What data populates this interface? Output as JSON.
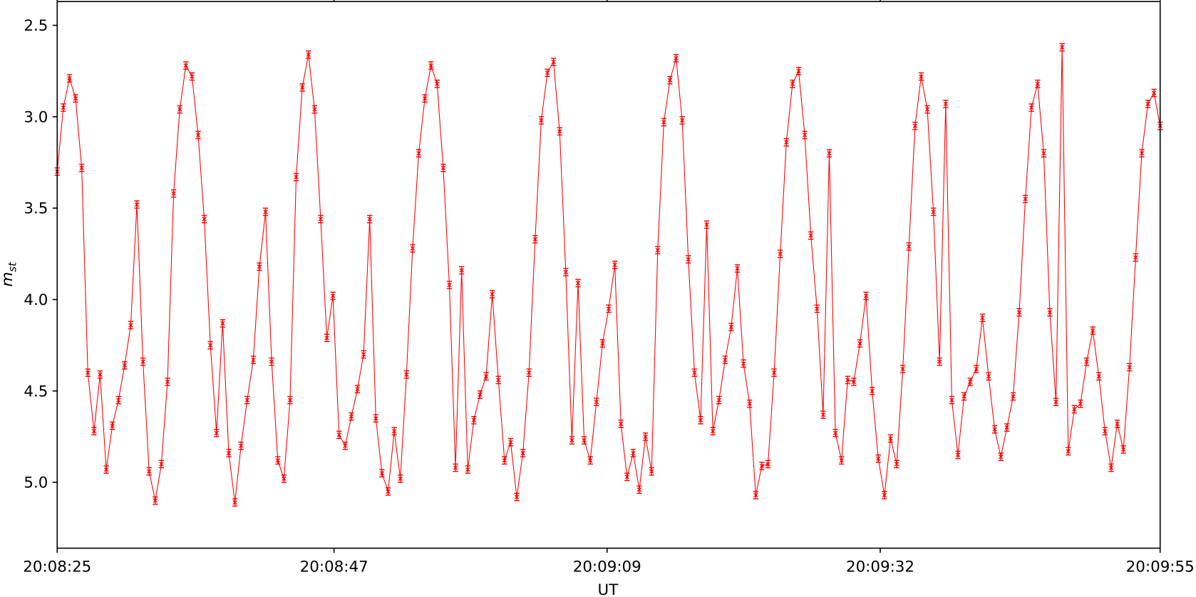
{
  "chart_data": {
    "type": "line",
    "xlabel": "UT",
    "ylabel_symbol": "m",
    "ylabel_subscript": "st",
    "color": "#ff0000",
    "y_inverted": true,
    "grid": false,
    "xlim": [
      0,
      90
    ],
    "ylim": [
      2.37,
      5.36
    ],
    "xticks": [
      {
        "value": 0,
        "label": "20:08:25"
      },
      {
        "value": 22.59,
        "label": "20:08:47"
      },
      {
        "value": 44.87,
        "label": "20:09:09"
      },
      {
        "value": 67.16,
        "label": "20:09:32"
      },
      {
        "value": 90,
        "label": "20:09:55"
      }
    ],
    "yticks": [
      2.5,
      {
        "value": 3,
        "label": "3.0"
      },
      3.5,
      {
        "value": 4,
        "label": "4.0"
      },
      4.5,
      {
        "value": 5,
        "label": "5.0"
      }
    ],
    "x": [
      0,
      0.5,
      1,
      1.5,
      2,
      2.5,
      3,
      3.5,
      4,
      4.5,
      5,
      5.5,
      6,
      6.5,
      7,
      7.5,
      8,
      8.5,
      9,
      9.5,
      10,
      10.5,
      11,
      11.5,
      12,
      12.5,
      13,
      13.5,
      14,
      14.5,
      15,
      15.5,
      16,
      16.5,
      17,
      17.5,
      18,
      18.5,
      19,
      19.5,
      20,
      20.5,
      21,
      21.5,
      22,
      22.5,
      23,
      23.5,
      24,
      24.5,
      25,
      25.5,
      26,
      26.5,
      27,
      27.5,
      28,
      28.5,
      29,
      29.5,
      30,
      30.5,
      31,
      31.5,
      32,
      32.5,
      33,
      33.5,
      34,
      34.5,
      35,
      35.5,
      36,
      36.5,
      37,
      37.5,
      38,
      38.5,
      39,
      39.5,
      40,
      40.5,
      41,
      41.5,
      42,
      42.5,
      43,
      43.5,
      44,
      44.5,
      45,
      45.5,
      46,
      46.5,
      47,
      47.5,
      48,
      48.5,
      49,
      49.5,
      50,
      50.5,
      51,
      51.5,
      52,
      52.5,
      53,
      53.5,
      54,
      54.5,
      55,
      55.5,
      56,
      56.5,
      57,
      57.5,
      58,
      58.5,
      59,
      59.5,
      60,
      60.5,
      61,
      61.5,
      62,
      62.5,
      63,
      63.5,
      64,
      64.5,
      65,
      65.5,
      66,
      66.5,
      67,
      67.5,
      68,
      68.5,
      69,
      69.5,
      70,
      70.5,
      71,
      71.5,
      72,
      72.5,
      73,
      73.5,
      74,
      74.5,
      75,
      75.5,
      76,
      76.5,
      77,
      77.5,
      78,
      78.5,
      79,
      79.5,
      80,
      80.5,
      81,
      81.5,
      82,
      82.5,
      83,
      83.5,
      84,
      84.5,
      85,
      85.5,
      86,
      86.5,
      87,
      87.5,
      88,
      88.5,
      89,
      89.5,
      90
    ],
    "values": [
      3.3,
      2.95,
      2.79,
      2.9,
      3.28,
      4.4,
      4.72,
      4.41,
      4.93,
      4.69,
      4.55,
      4.36,
      4.14,
      3.48,
      4.34,
      4.94,
      5.1,
      4.9,
      4.45,
      3.42,
      2.96,
      2.72,
      2.78,
      3.1,
      3.56,
      4.25,
      4.73,
      4.13,
      4.84,
      5.11,
      4.8,
      4.55,
      4.33,
      3.82,
      3.52,
      4.34,
      4.88,
      4.98,
      4.55,
      3.33,
      2.84,
      2.66,
      2.96,
      3.56,
      4.21,
      3.98,
      4.74,
      4.8,
      4.64,
      4.49,
      4.3,
      3.56,
      4.65,
      4.95,
      5.05,
      4.72,
      4.98,
      4.41,
      3.72,
      3.2,
      2.9,
      2.72,
      2.82,
      3.28,
      3.92,
      4.92,
      3.84,
      4.93,
      4.66,
      4.52,
      4.42,
      3.97,
      4.44,
      4.88,
      4.78,
      5.08,
      4.84,
      4.4,
      3.67,
      3.02,
      2.76,
      2.7,
      3.08,
      3.85,
      4.77,
      3.91,
      4.77,
      4.88,
      4.56,
      4.24,
      4.05,
      3.81,
      4.68,
      4.97,
      4.84,
      5.04,
      4.75,
      4.94,
      3.73,
      3.03,
      2.8,
      2.68,
      3.02,
      3.78,
      4.4,
      4.66,
      3.59,
      4.72,
      4.55,
      4.33,
      4.15,
      3.83,
      4.35,
      4.57,
      5.07,
      4.91,
      4.9,
      4.4,
      3.75,
      3.14,
      2.82,
      2.75,
      3.1,
      3.65,
      4.05,
      4.63,
      3.2,
      4.73,
      4.88,
      4.44,
      4.45,
      4.24,
      3.98,
      4.5,
      4.87,
      5.07,
      4.76,
      4.9,
      4.38,
      3.71,
      3.05,
      2.78,
      2.96,
      3.52,
      4.34,
      2.93,
      4.55,
      4.85,
      4.53,
      4.45,
      4.38,
      4.1,
      4.42,
      4.71,
      4.86,
      4.7,
      4.53,
      4.07,
      3.45,
      2.95,
      2.82,
      3.2,
      4.07,
      4.56,
      2.62,
      4.83,
      4.6,
      4.57,
      4.34,
      4.17,
      4.42,
      4.72,
      4.92,
      4.68,
      4.82,
      4.37,
      3.77,
      3.2,
      2.93,
      2.87,
      3.05
    ],
    "errors": [
      0.02,
      0.02,
      0.02,
      0.02,
      0.02,
      0.02,
      0.02,
      0.02,
      0.02,
      0.02,
      0.02,
      0.02,
      0.02,
      0.02,
      0.02,
      0.02,
      0.02,
      0.02,
      0.02,
      0.02,
      0.02,
      0.02,
      0.02,
      0.02,
      0.02,
      0.02,
      0.02,
      0.02,
      0.02,
      0.02,
      0.02,
      0.02,
      0.02,
      0.02,
      0.02,
      0.02,
      0.02,
      0.02,
      0.02,
      0.02,
      0.02,
      0.02,
      0.02,
      0.02,
      0.02,
      0.02,
      0.02,
      0.02,
      0.02,
      0.02,
      0.02,
      0.02,
      0.02,
      0.02,
      0.02,
      0.02,
      0.02,
      0.02,
      0.02,
      0.02,
      0.02,
      0.02,
      0.02,
      0.02,
      0.02,
      0.02,
      0.02,
      0.02,
      0.02,
      0.02,
      0.02,
      0.02,
      0.02,
      0.02,
      0.02,
      0.02,
      0.02,
      0.02,
      0.02,
      0.02,
      0.02,
      0.02,
      0.02,
      0.02,
      0.02,
      0.02,
      0.02,
      0.02,
      0.02,
      0.02,
      0.02,
      0.02,
      0.02,
      0.02,
      0.02,
      0.02,
      0.02,
      0.02,
      0.02,
      0.02,
      0.02,
      0.02,
      0.02,
      0.02,
      0.02,
      0.02,
      0.02,
      0.02,
      0.02,
      0.02,
      0.02,
      0.02,
      0.02,
      0.02,
      0.02,
      0.02,
      0.02,
      0.02,
      0.02,
      0.02,
      0.02,
      0.02,
      0.02,
      0.02,
      0.02,
      0.02,
      0.02,
      0.02,
      0.02,
      0.02,
      0.02,
      0.02,
      0.02,
      0.02,
      0.02,
      0.02,
      0.02,
      0.02,
      0.02,
      0.02,
      0.02,
      0.02,
      0.02,
      0.02,
      0.02,
      0.02,
      0.02,
      0.02,
      0.02,
      0.02,
      0.02,
      0.02,
      0.02,
      0.02,
      0.02,
      0.02,
      0.02,
      0.02,
      0.02,
      0.02,
      0.02,
      0.02,
      0.02,
      0.02,
      0.02,
      0.02,
      0.02,
      0.02,
      0.02,
      0.02,
      0.02,
      0.02,
      0.02,
      0.02,
      0.02,
      0.02,
      0.02,
      0.02,
      0.02,
      0.02,
      0.02
    ]
  }
}
